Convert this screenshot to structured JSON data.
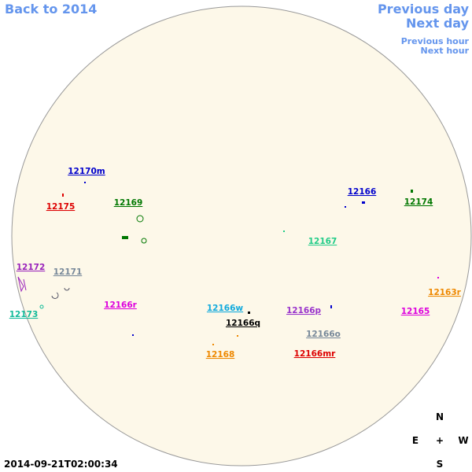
{
  "navigation": {
    "back": "Back to 2014",
    "previous_day": "Previous day",
    "next_day": "Next day",
    "previous_hour": "Previous hour",
    "next_hour": "Next hour"
  },
  "regions": [
    {
      "label": "12170m",
      "color": "#0000cc"
    },
    {
      "label": "12175",
      "color": "#dd0000"
    },
    {
      "label": "12169",
      "color": "#007700"
    },
    {
      "label": "12166",
      "color": "#0000cc"
    },
    {
      "label": "12174",
      "color": "#007700"
    },
    {
      "label": "12167",
      "color": "#22cc88"
    },
    {
      "label": "12172",
      "color": "#9922bb"
    },
    {
      "label": "12171",
      "color": "#778899"
    },
    {
      "label": "12173",
      "color": "#11bb99"
    },
    {
      "label": "12166r",
      "color": "#dd00dd"
    },
    {
      "label": "12166w",
      "color": "#11aadd"
    },
    {
      "label": "12166q",
      "color": "#000000"
    },
    {
      "label": "12166p",
      "color": "#9933cc"
    },
    {
      "label": "12165",
      "color": "#dd00dd"
    },
    {
      "label": "12163r",
      "color": "#ee8800"
    },
    {
      "label": "12166o",
      "color": "#778899"
    },
    {
      "label": "12168",
      "color": "#ee8800"
    },
    {
      "label": "12166mr",
      "color": "#dd0000"
    }
  ],
  "timestamp": "2014-09-21T02:00:34",
  "compass": {
    "north": "N",
    "east": "E",
    "center": "+",
    "west": "W",
    "south": "S"
  }
}
